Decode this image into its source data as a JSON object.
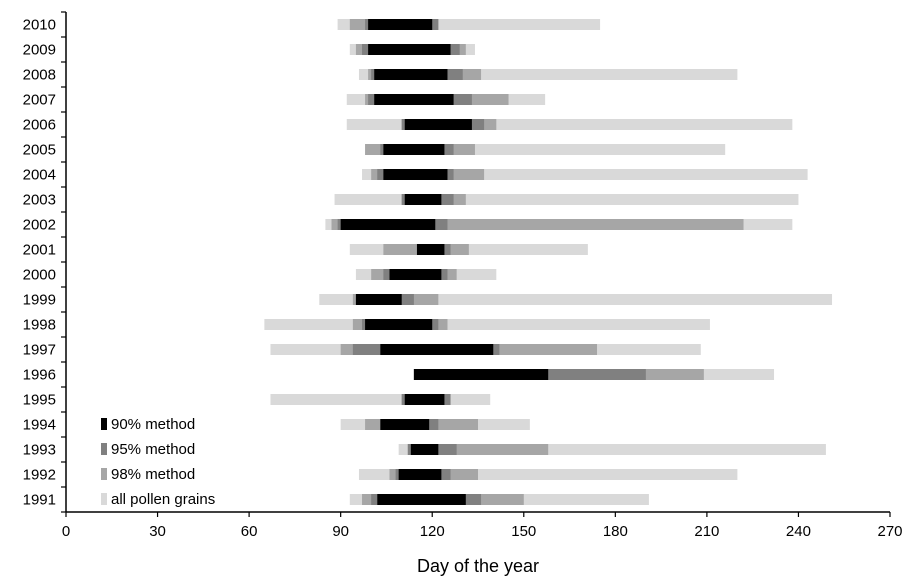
{
  "chart_data": {
    "type": "bar",
    "orientation": "horizontal-floating-ranges",
    "xlabel": "Day of the year",
    "ylabel": "",
    "xlim": [
      0,
      270
    ],
    "xticks": [
      0,
      30,
      60,
      90,
      120,
      150,
      180,
      210,
      240,
      270
    ],
    "categories": [
      "2010",
      "2009",
      "2008",
      "2007",
      "2006",
      "2005",
      "2004",
      "2003",
      "2002",
      "2001",
      "2000",
      "1999",
      "1998",
      "1997",
      "1996",
      "1995",
      "1994",
      "1993",
      "1992",
      "1991"
    ],
    "series": [
      {
        "name": "all pollen grains",
        "color": "#d9d9d9",
        "ranges": [
          [
            89,
            175
          ],
          [
            93,
            134
          ],
          [
            96,
            220
          ],
          [
            92,
            157
          ],
          [
            92,
            238
          ],
          [
            98,
            216
          ],
          [
            97,
            243
          ],
          [
            88,
            240
          ],
          [
            85,
            238
          ],
          [
            93,
            171
          ],
          [
            95,
            141
          ],
          [
            83,
            251
          ],
          [
            65,
            211
          ],
          [
            67,
            208
          ],
          [
            114,
            232
          ],
          [
            67,
            139
          ],
          [
            90,
            152
          ],
          [
            109,
            249
          ],
          [
            96,
            220
          ],
          [
            93,
            191
          ]
        ]
      },
      {
        "name": "98% method",
        "color": "#a6a6a6",
        "ranges": [
          [
            93,
            122
          ],
          [
            95,
            131
          ],
          [
            99,
            136
          ],
          [
            98,
            145
          ],
          [
            110,
            141
          ],
          [
            98,
            134
          ],
          [
            100,
            137
          ],
          [
            110,
            131
          ],
          [
            87,
            222
          ],
          [
            104,
            132
          ],
          [
            100,
            128
          ],
          [
            94,
            122
          ],
          [
            94,
            125
          ],
          [
            90,
            174
          ],
          [
            114,
            209
          ],
          [
            110,
            126
          ],
          [
            98,
            135
          ],
          [
            112,
            158
          ],
          [
            106,
            135
          ],
          [
            97,
            150
          ]
        ]
      },
      {
        "name": "95% method",
        "color": "#808080",
        "ranges": [
          [
            98,
            122
          ],
          [
            97,
            129
          ],
          [
            100,
            130
          ],
          [
            99,
            133
          ],
          [
            110,
            137
          ],
          [
            103,
            127
          ],
          [
            102,
            127
          ],
          [
            110,
            127
          ],
          [
            89,
            125
          ],
          [
            115,
            126
          ],
          [
            104,
            125
          ],
          [
            95,
            114
          ],
          [
            97,
            122
          ],
          [
            94,
            142
          ],
          [
            114,
            190
          ],
          [
            110,
            126
          ],
          [
            103,
            122
          ],
          [
            112,
            128
          ],
          [
            108,
            126
          ],
          [
            100,
            136
          ]
        ]
      },
      {
        "name": "90% method",
        "color": "#000000",
        "ranges": [
          [
            99,
            120
          ],
          [
            99,
            126
          ],
          [
            101,
            125
          ],
          [
            101,
            127
          ],
          [
            111,
            133
          ],
          [
            104,
            124
          ],
          [
            104,
            125
          ],
          [
            111,
            123
          ],
          [
            90,
            121
          ],
          [
            115,
            124
          ],
          [
            106,
            123
          ],
          [
            95,
            110
          ],
          [
            98,
            120
          ],
          [
            103,
            140
          ],
          [
            114,
            158
          ],
          [
            111,
            124
          ],
          [
            103,
            119
          ],
          [
            113,
            122
          ],
          [
            109,
            123
          ],
          [
            102,
            131
          ]
        ]
      }
    ],
    "legend": {
      "position": "bottom-left",
      "order": [
        "90% method",
        "95% method",
        "98% method",
        "all pollen grains"
      ]
    },
    "grid": false
  }
}
